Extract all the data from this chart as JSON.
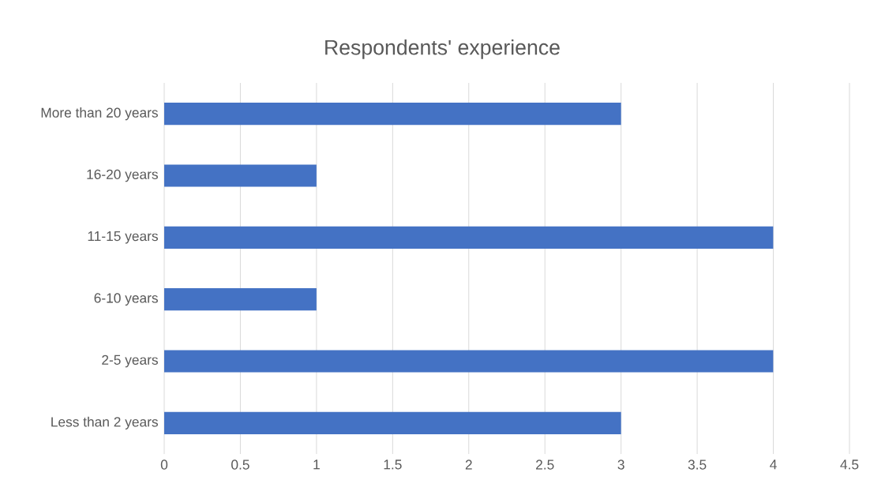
{
  "chart_data": {
    "type": "bar",
    "orientation": "horizontal",
    "title": "Respondents' experience",
    "categories": [
      "More than 20 years",
      "16-20 years",
      "11-15 years",
      "6-10 years",
      "2-5 years",
      "Less than 2 years"
    ],
    "values": [
      3,
      1,
      4,
      1,
      4,
      3
    ],
    "color": "#4472c4",
    "xlim": [
      0,
      4.5
    ],
    "xticks": [
      0,
      0.5,
      1,
      1.5,
      2,
      2.5,
      3,
      3.5,
      4,
      4.5
    ],
    "grid": "x"
  }
}
